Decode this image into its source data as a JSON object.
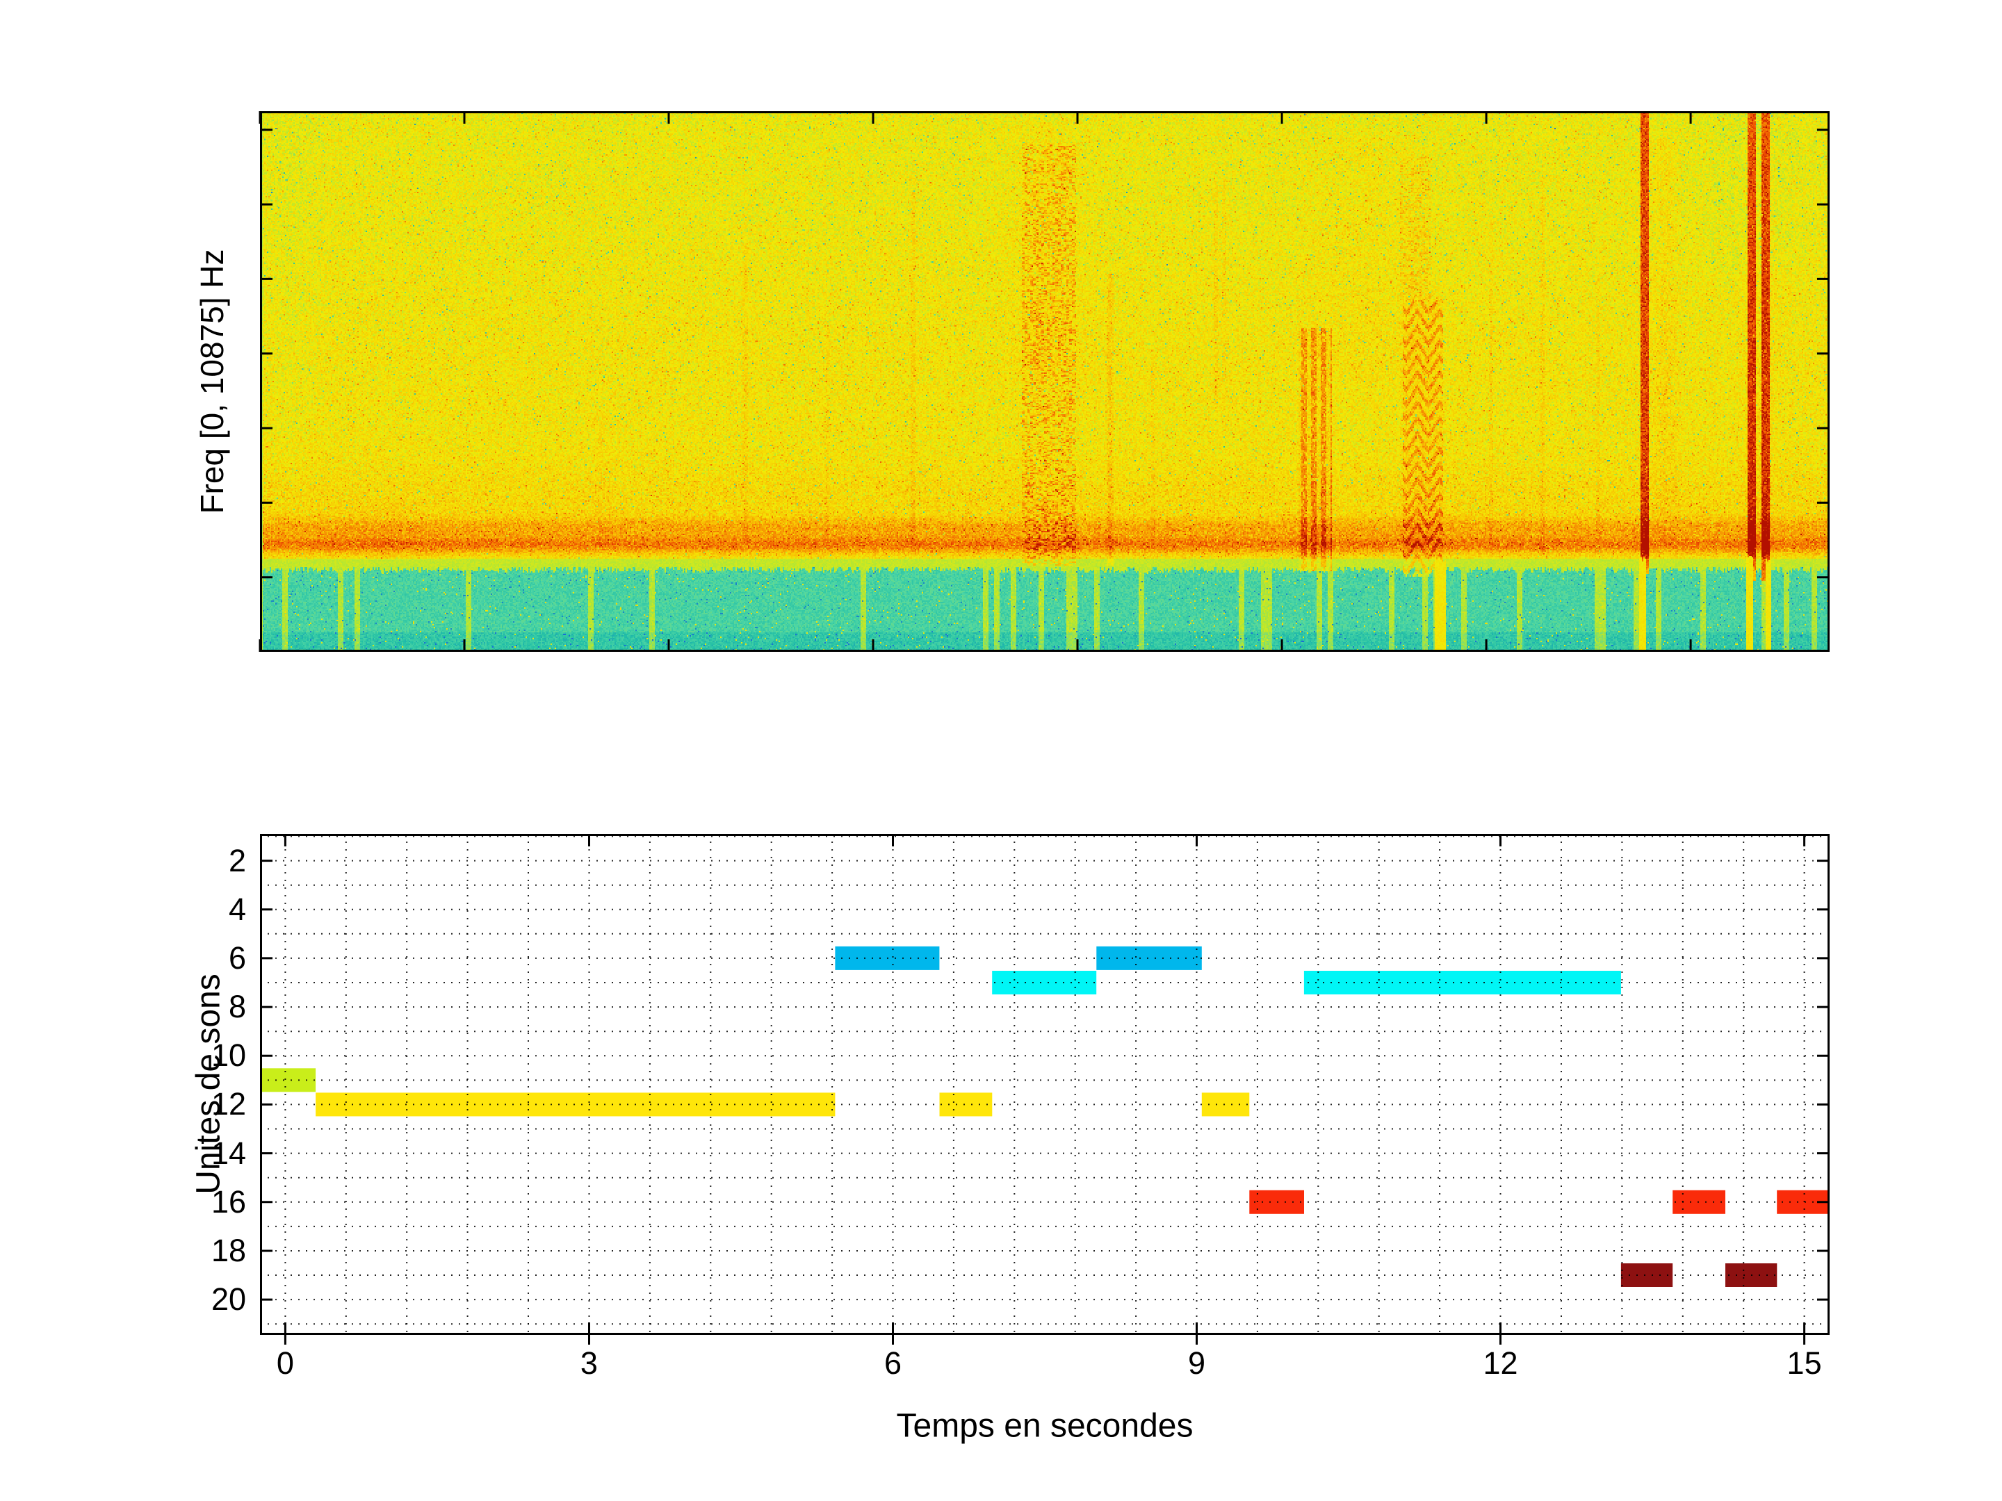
{
  "figure": {
    "background": "#ffffff"
  },
  "chart_data": [
    {
      "type": "heatmap",
      "subtype": "spectrogram",
      "title": "",
      "xlabel": "",
      "ylabel": "Freq [0, 10875] Hz",
      "freq_range_hz": [
        0,
        10875
      ],
      "time_range_s": [
        0,
        15.36
      ],
      "unlabeled_xtick_step_s": 2,
      "unlabeled_ytick_step_hz": 1500,
      "colormap": "jet-like",
      "palette": [
        [
          0.0,
          "#1a6fd4"
        ],
        [
          0.07,
          "#22bfa6"
        ],
        [
          0.16,
          "#4fd6a4"
        ],
        [
          0.3,
          "#b4e632"
        ],
        [
          0.42,
          "#f2ea06"
        ],
        [
          0.58,
          "#f8c303"
        ],
        [
          0.72,
          "#f58902"
        ],
        [
          0.85,
          "#ee4d01"
        ],
        [
          1.0,
          "#b31000"
        ]
      ],
      "background_field": {
        "base_intensity": 0.42,
        "noise": 0.17,
        "desc": "yellow noise field with orange and green speckle"
      },
      "low_band": {
        "top_frac": 0.848,
        "intensity": 0.12,
        "desc": "turquoise low-frequency noise band (approx 0-1600 Hz)",
        "color": "#35cfae"
      },
      "bright_gap": {
        "y0": 0.828,
        "y1": 0.848,
        "intensity": 0.33,
        "desc": "pale yellow gap above low band"
      },
      "persistent_band": {
        "center_frac": 0.802,
        "second_frac": 0.77,
        "desc": "dense orange horizontal noise band around 2 kHz"
      },
      "events": [
        {
          "kind": "wash",
          "t": 1.2,
          "w": 1.6,
          "y0": 0.72,
          "y1": 0.83,
          "add": 0.05
        },
        {
          "kind": "wash",
          "t": 0.3,
          "w": 0.8,
          "y0": 0.0,
          "y1": 0.6,
          "add": -0.05
        },
        {
          "kind": "wash",
          "t": 3.35,
          "w": 0.25,
          "y0": 0.55,
          "y1": 0.8,
          "add": 0.06
        },
        {
          "kind": "line",
          "t": 4.75,
          "w": 0.05,
          "y0": 0.25,
          "y1": 0.8,
          "add": 0.09
        },
        {
          "kind": "line",
          "t": 5.55,
          "w": 0.04,
          "y0": 0.4,
          "y1": 0.8,
          "add": 0.07
        },
        {
          "kind": "line",
          "t": 6.39,
          "w": 0.05,
          "y0": 0.15,
          "y1": 0.82,
          "add": 0.1
        },
        {
          "kind": "scribble",
          "t": 7.72,
          "w": 0.52,
          "y0": 0.06,
          "y1": 0.84,
          "add": 0.17
        },
        {
          "kind": "wash",
          "t": 7.7,
          "w": 1.3,
          "y0": 0.02,
          "y1": 0.5,
          "add": 0.06
        },
        {
          "kind": "line",
          "t": 8.32,
          "w": 0.06,
          "y0": 0.3,
          "y1": 0.84,
          "add": 0.13
        },
        {
          "kind": "line",
          "t": 8.74,
          "w": 0.05,
          "y0": 0.45,
          "y1": 0.8,
          "add": 0.07
        },
        {
          "kind": "line",
          "t": 9.35,
          "w": 0.04,
          "y0": 0.12,
          "y1": 0.55,
          "add": 0.1
        },
        {
          "kind": "line",
          "t": 9.44,
          "w": 0.04,
          "y0": 0.12,
          "y1": 0.6,
          "add": 0.08
        },
        {
          "kind": "hatch",
          "t": 10.33,
          "w": 0.33,
          "y0": 0.4,
          "y1": 0.85,
          "add": 0.3
        },
        {
          "kind": "wash",
          "t": 10.8,
          "w": 1.5,
          "y0": 0.05,
          "y1": 0.5,
          "add": 0.05
        },
        {
          "kind": "chevron",
          "t": 11.38,
          "w": 0.4,
          "y0": 0.35,
          "y1": 0.86,
          "add": 0.28
        },
        {
          "kind": "scribble",
          "t": 11.3,
          "w": 0.3,
          "y0": 0.08,
          "y1": 0.35,
          "add": 0.1
        },
        {
          "kind": "line",
          "t": 12.05,
          "w": 0.04,
          "y0": 0.2,
          "y1": 0.8,
          "add": 0.07
        },
        {
          "kind": "line",
          "t": 12.55,
          "w": 0.05,
          "y0": 0.12,
          "y1": 0.82,
          "add": 0.09
        },
        {
          "kind": "line",
          "t": 13.1,
          "w": 0.04,
          "y0": 0.3,
          "y1": 0.8,
          "add": 0.07
        },
        {
          "kind": "solid",
          "t": 13.55,
          "w": 0.09,
          "y0": 0.0,
          "y1": 0.855,
          "add": 0.5
        },
        {
          "kind": "wash",
          "t": 13.75,
          "w": 0.35,
          "y0": 0.05,
          "y1": 0.8,
          "add": 0.1
        },
        {
          "kind": "solid",
          "t": 14.6,
          "w": 0.08,
          "y0": 0.0,
          "y1": 0.87,
          "add": 0.5
        },
        {
          "kind": "solid",
          "t": 14.74,
          "w": 0.08,
          "y0": 0.0,
          "y1": 0.87,
          "add": 0.5
        },
        {
          "kind": "wash",
          "t": 14.67,
          "w": 0.45,
          "y0": 0.05,
          "y1": 0.85,
          "add": 0.09
        },
        {
          "kind": "wash",
          "t": 14.6,
          "w": 1.6,
          "y0": 0.0,
          "y1": 0.3,
          "add": -0.07
        },
        {
          "kind": "bright",
          "t": 11.55,
          "w": 0.12
        },
        {
          "kind": "bright",
          "t": 13.53,
          "w": 0.07
        },
        {
          "kind": "bright",
          "t": 14.58,
          "w": 0.06
        },
        {
          "kind": "bright",
          "t": 14.76,
          "w": 0.06
        }
      ]
    },
    {
      "type": "bar",
      "subtype": "time-segments",
      "title": "",
      "xlabel": "Temps en secondes",
      "ylabel": "Unites de sons",
      "xlim": [
        -0.25,
        15.25
      ],
      "ylim": [
        0.9,
        21.45
      ],
      "y_axis_reversed": true,
      "xticks": [
        0,
        3,
        6,
        9,
        12,
        15
      ],
      "yticks": [
        2,
        4,
        6,
        8,
        10,
        12,
        14,
        16,
        18,
        20
      ],
      "grid": {
        "style": "dotted",
        "x_step_s": 0.6,
        "y_step_units": 1
      },
      "bar_height_units": 0.97,
      "unit_colors": {
        "6": "#00b7ec",
        "7": "#00f6f6",
        "11": "#c9ee1a",
        "12": "#ffe60a",
        "16": "#fa2b0a",
        "19": "#8d1111"
      },
      "segments": [
        {
          "start": -0.25,
          "end": 0.3,
          "unit": 11,
          "color": "#c9ee1a"
        },
        {
          "start": 0.3,
          "end": 5.43,
          "unit": 12,
          "color": "#ffe60a"
        },
        {
          "start": 5.43,
          "end": 6.46,
          "unit": 6,
          "color": "#00b7ec"
        },
        {
          "start": 6.46,
          "end": 6.98,
          "unit": 12,
          "color": "#ffe60a"
        },
        {
          "start": 6.98,
          "end": 8.01,
          "unit": 7,
          "color": "#00f6f6"
        },
        {
          "start": 8.01,
          "end": 9.05,
          "unit": 6,
          "color": "#00b7ec"
        },
        {
          "start": 9.05,
          "end": 9.52,
          "unit": 12,
          "color": "#ffe60a"
        },
        {
          "start": 9.52,
          "end": 10.06,
          "unit": 16,
          "color": "#fa2b0a"
        },
        {
          "start": 10.06,
          "end": 13.19,
          "unit": 7,
          "color": "#00f6f6"
        },
        {
          "start": 13.19,
          "end": 13.7,
          "unit": 19,
          "color": "#8d1111"
        },
        {
          "start": 13.7,
          "end": 14.22,
          "unit": 16,
          "color": "#fa2b0a"
        },
        {
          "start": 14.22,
          "end": 14.73,
          "unit": 19,
          "color": "#8d1111"
        },
        {
          "start": 14.73,
          "end": 15.25,
          "unit": 16,
          "color": "#fa2b0a"
        }
      ]
    }
  ]
}
